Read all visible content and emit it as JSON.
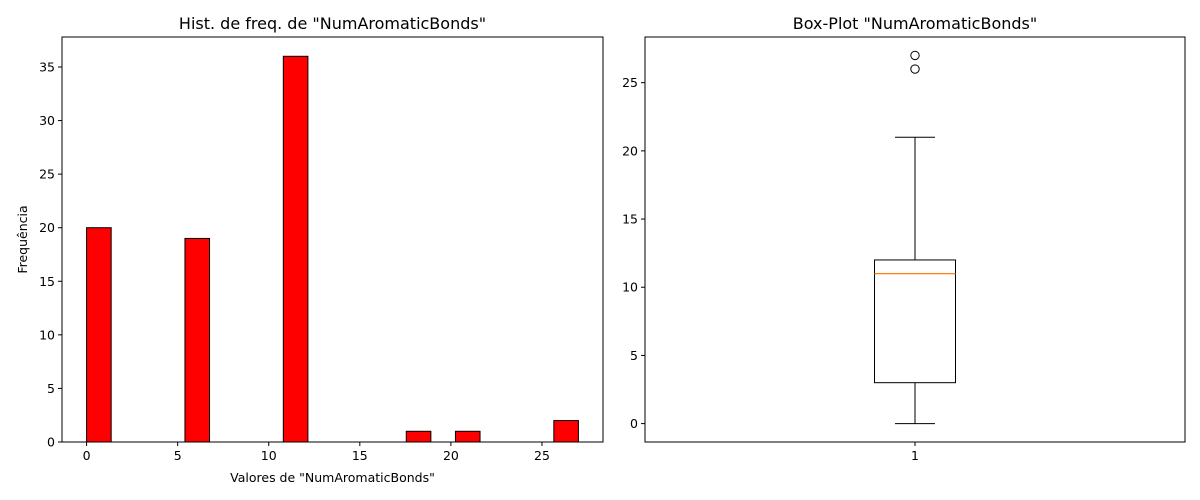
{
  "chart_data": [
    {
      "type": "bar",
      "title": "Hist. de freq. de \"NumAromaticBonds\"",
      "xlabel": "Valores de \"NumAromaticBonds\"",
      "ylabel": "Frequência",
      "xlim": [
        -1.35,
        28.35
      ],
      "ylim": [
        0,
        37.8
      ],
      "xticks": [
        0,
        5,
        10,
        15,
        20,
        25
      ],
      "yticks": [
        0,
        5,
        10,
        15,
        20,
        25,
        30,
        35
      ],
      "bin_start": 0,
      "bin_width": 1.35,
      "values": [
        20,
        0,
        0,
        0,
        19,
        0,
        0,
        0,
        36,
        0,
        0,
        0,
        0,
        1,
        0,
        1,
        0,
        0,
        0,
        2
      ],
      "colors": {
        "bar_fill": "#ff0000",
        "bar_edge": "#000000"
      },
      "grid": false,
      "legend": "none"
    },
    {
      "type": "box",
      "title": "Box-Plot \"NumAromaticBonds\"",
      "xlabel": "",
      "ylabel": "",
      "category": "1",
      "ylim": [
        -1.35,
        28.35
      ],
      "yticks": [
        0,
        5,
        10,
        15,
        20,
        25
      ],
      "stats": {
        "whisker_low": 0,
        "q1": 3,
        "median": 11,
        "q3": 12,
        "whisker_high": 21
      },
      "outliers": [
        26,
        27
      ],
      "colors": {
        "box_edge": "#000000",
        "median": "#ff7f0e"
      },
      "grid": false,
      "legend": "none"
    }
  ]
}
